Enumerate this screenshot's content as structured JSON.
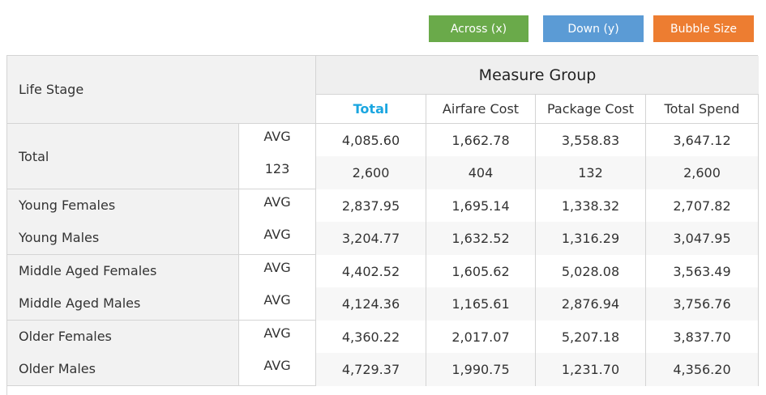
{
  "toolbar": {
    "across": "Across (x)",
    "down": "Down (y)",
    "bubble": "Bubble Size"
  },
  "table": {
    "row_header": "Life Stage",
    "measure_group": "Measure Group",
    "columns": [
      "Total",
      "Airfare Cost",
      "Package Cost",
      "Total Spend"
    ],
    "rows": [
      {
        "label": "Total",
        "measure": "AVG",
        "values": [
          "4,085.60",
          "1,662.78",
          "3,558.83",
          "3,647.12"
        ]
      },
      {
        "label": "",
        "measure": "123",
        "values": [
          "2,600",
          "404",
          "132",
          "2,600"
        ]
      },
      {
        "label": "Young Females",
        "measure": "AVG",
        "values": [
          "2,837.95",
          "1,695.14",
          "1,338.32",
          "2,707.82"
        ]
      },
      {
        "label": "Young Males",
        "measure": "AVG",
        "values": [
          "3,204.77",
          "1,632.52",
          "1,316.29",
          "3,047.95"
        ]
      },
      {
        "label": "Middle Aged Females",
        "measure": "AVG",
        "values": [
          "4,402.52",
          "1,605.62",
          "5,028.08",
          "3,563.49"
        ]
      },
      {
        "label": "Middle Aged Males",
        "measure": "AVG",
        "values": [
          "4,124.36",
          "1,165.61",
          "2,876.94",
          "3,756.76"
        ]
      },
      {
        "label": "Older Females",
        "measure": "AVG",
        "values": [
          "4,360.22",
          "2,017.07",
          "5,207.18",
          "3,837.70"
        ]
      },
      {
        "label": "Older Males",
        "measure": "AVG",
        "values": [
          "4,729.37",
          "1,990.75",
          "1,231.70",
          "4,356.20"
        ]
      }
    ]
  },
  "colors": {
    "across": "#6aaa4a",
    "down": "#5b9bd5",
    "bubble": "#ed7d31",
    "active_column": "#1aa6e0"
  }
}
